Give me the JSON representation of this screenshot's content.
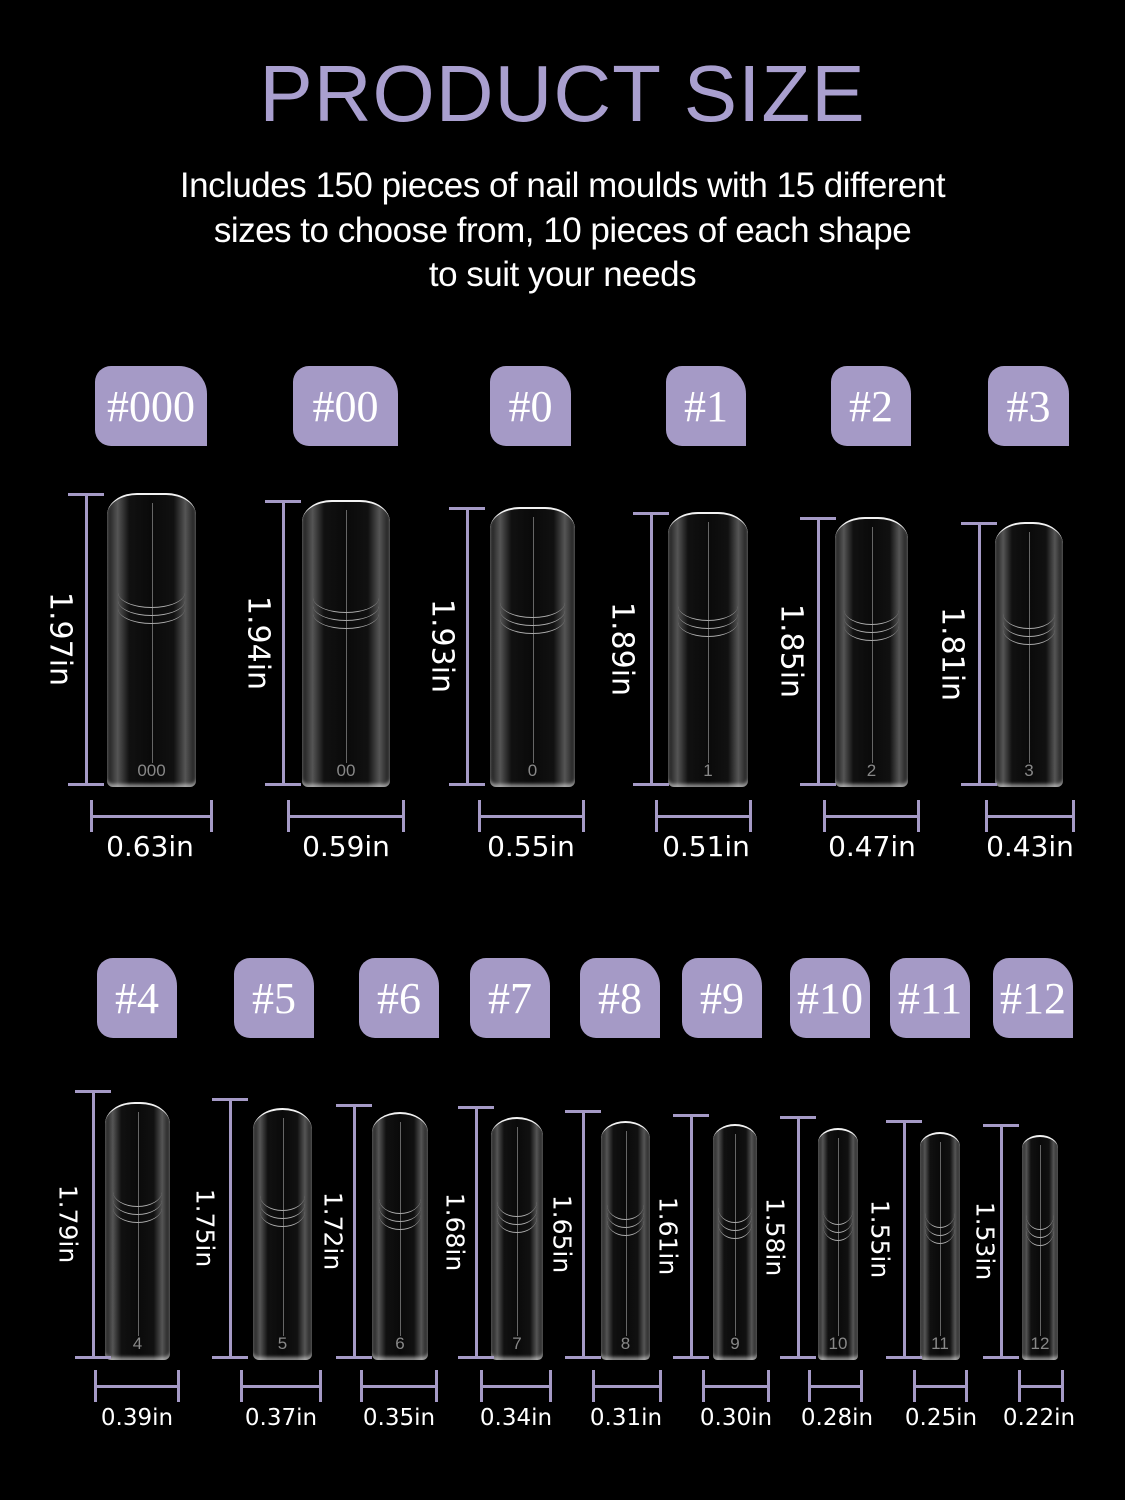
{
  "title": "PRODUCT SIZE",
  "subtitle_lines": [
    "Includes 150 pieces of nail moulds with 15 different",
    "sizes to choose from, 10 pieces of each shape",
    "to suit your needs"
  ],
  "accent_color": "#a59ac6",
  "sizes": [
    {
      "label": "#000",
      "number": "000",
      "length": "1.97in",
      "width": "0.63in"
    },
    {
      "label": "#00",
      "number": "00",
      "length": "1.94in",
      "width": "0.59in"
    },
    {
      "label": "#0",
      "number": "0",
      "length": "1.93in",
      "width": "0.55in"
    },
    {
      "label": "#1",
      "number": "1",
      "length": "1.89in",
      "width": "0.51in"
    },
    {
      "label": "#2",
      "number": "2",
      "length": "1.85in",
      "width": "0.47in"
    },
    {
      "label": "#3",
      "number": "3",
      "length": "1.81in",
      "width": "0.43in"
    },
    {
      "label": "#4",
      "number": "4",
      "length": "1.79in",
      "width": "0.39in"
    },
    {
      "label": "#5",
      "number": "5",
      "length": "1.75in",
      "width": "0.37in"
    },
    {
      "label": "#6",
      "number": "6",
      "length": "1.72in",
      "width": "0.35in"
    },
    {
      "label": "#7",
      "number": "7",
      "length": "1.68in",
      "width": "0.34in"
    },
    {
      "label": "#8",
      "number": "8",
      "length": "1.65in",
      "width": "0.31in"
    },
    {
      "label": "#9",
      "number": "9",
      "length": "1.61in",
      "width": "0.30in"
    },
    {
      "label": "#10",
      "number": "10",
      "length": "1.58in",
      "width": "0.28in"
    },
    {
      "label": "#11",
      "number": "11",
      "length": "1.55in",
      "width": "0.25in"
    },
    {
      "label": "#12",
      "number": "12",
      "length": "1.53in",
      "width": "0.22in"
    }
  ]
}
